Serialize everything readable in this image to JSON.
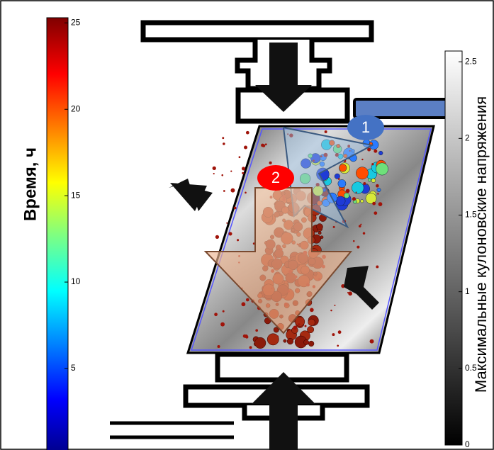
{
  "time_colorbar": {
    "label": "Время, ч",
    "lim": [
      0.2,
      25.3
    ],
    "ticks": [
      5,
      10,
      15,
      20,
      25
    ]
  },
  "stress_colorbar": {
    "label": "Максимальные кулоновские напряжения",
    "lim": [
      0,
      2.57
    ],
    "ticks": [
      0,
      0.5,
      1,
      1.5,
      2,
      2.5
    ]
  },
  "markers": [
    "1",
    "2"
  ]
}
